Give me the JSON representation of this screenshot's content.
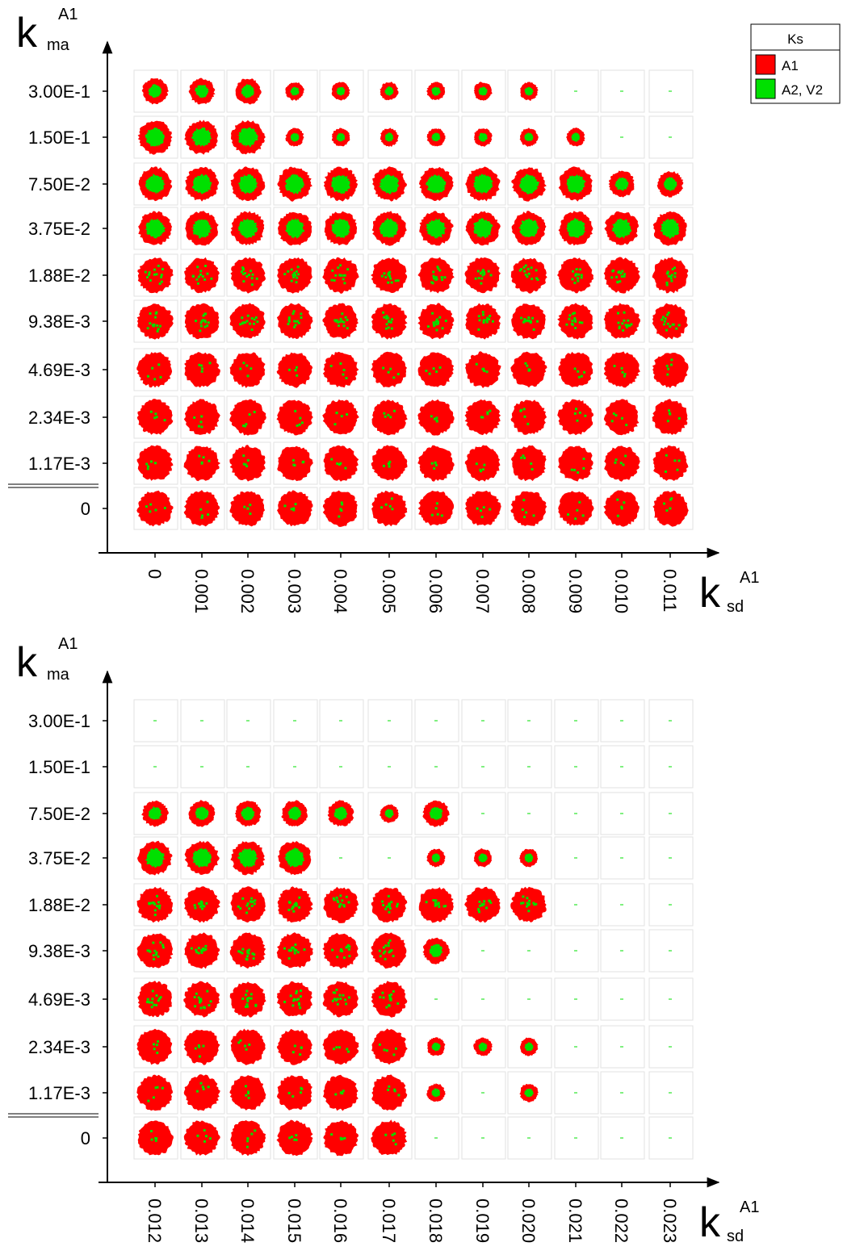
{
  "legend": {
    "title": "Ks",
    "items": [
      {
        "label": "A1",
        "color": "#ff0000"
      },
      {
        "label": "A2, V2",
        "color": "#00e000"
      }
    ]
  },
  "panels": [
    {
      "y_axis": {
        "symbol": "k",
        "subscript": "ma",
        "superscript": "A1"
      },
      "x_axis": {
        "symbol": "k",
        "subscript": "sd",
        "superscript": "A1"
      },
      "y_labels": [
        "3.00E-1",
        "1.50E-1",
        "7.50E-2",
        "3.75E-2",
        "1.88E-2",
        "9.38E-3",
        "4.69E-3",
        "2.34E-3",
        "1.17E-3",
        "0"
      ],
      "x_labels": [
        "0",
        "0.001",
        "0.002",
        "0.003",
        "0.004",
        "0.005",
        "0.006",
        "0.007",
        "0.008",
        "0.009",
        "0.010",
        "0.011"
      ]
    },
    {
      "y_axis": {
        "symbol": "k",
        "subscript": "ma",
        "superscript": "A1"
      },
      "x_axis": {
        "symbol": "k",
        "subscript": "sd",
        "superscript": "A1"
      },
      "y_labels": [
        "3.00E-1",
        "1.50E-1",
        "7.50E-2",
        "3.75E-2",
        "1.88E-2",
        "9.38E-3",
        "4.69E-3",
        "2.34E-3",
        "1.17E-3",
        "0"
      ],
      "x_labels": [
        "0.012",
        "0.013",
        "0.014",
        "0.015",
        "0.016",
        "0.017",
        "0.018",
        "0.019",
        "0.020",
        "0.021",
        "0.022",
        "0.023"
      ]
    }
  ]
}
